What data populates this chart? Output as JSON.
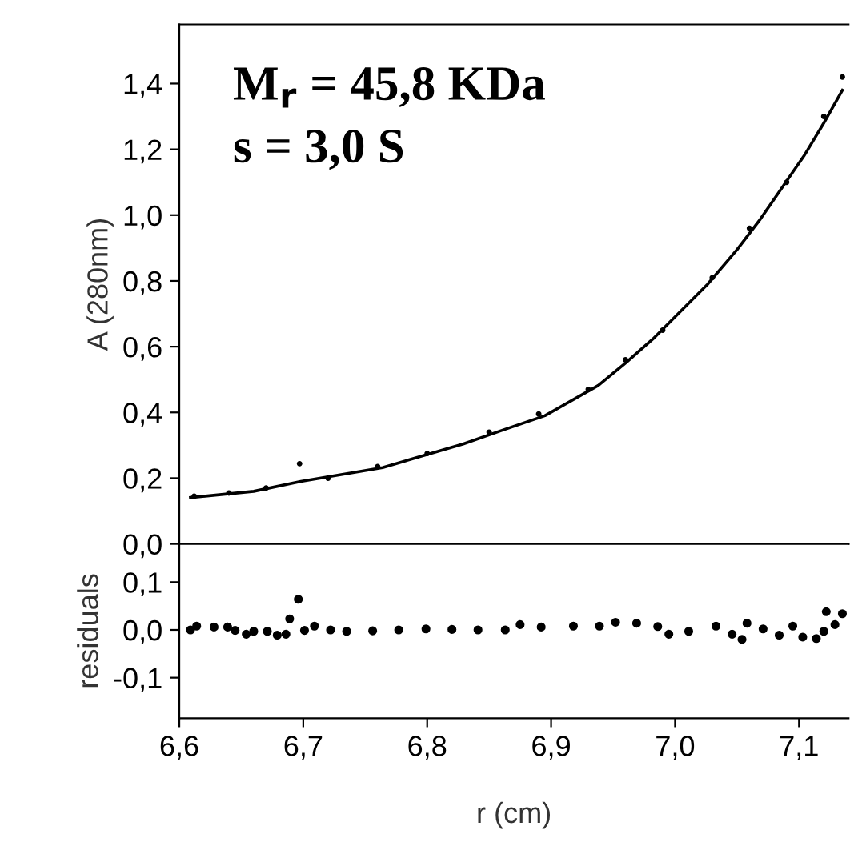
{
  "chart_data": [
    {
      "type": "line",
      "ylabel": "A (280nm)",
      "annotations": [
        "M$_{r}$ = 45,8 KDa",
        "s = 3,0 S"
      ],
      "tick_labels": "y",
      "xlim": [
        6.6,
        7.14
      ],
      "ylim": [
        0,
        1.58
      ],
      "yticks": [
        {
          "value": 0,
          "label": "0,0"
        },
        {
          "value": 0.2,
          "label": "0,2"
        },
        {
          "value": 0.4,
          "label": "0,4"
        },
        {
          "value": 0.6,
          "label": "0,6"
        },
        {
          "value": 0.8,
          "label": "0,8"
        },
        {
          "value": 1.0,
          "label": "1,0"
        },
        {
          "value": 1.2,
          "label": "1,2"
        },
        {
          "value": 1.4,
          "label": "1,4"
        }
      ],
      "series": [
        {
          "type": "line",
          "color": "#000000",
          "marker": "none",
          "line_style": "solid",
          "x": [
            6.609,
            6.66,
            6.698,
            6.764,
            6.829,
            6.86,
            6.895,
            6.938,
            6.96,
            6.982,
            7.026,
            7.05,
            7.069,
            7.104,
            7.12,
            7.135
          ],
          "values": [
            0.141,
            0.16,
            0.19,
            0.232,
            0.304,
            0.345,
            0.39,
            0.482,
            0.55,
            0.623,
            0.789,
            0.895,
            0.989,
            1.18,
            1.28,
            1.38
          ]
        },
        {
          "type": "scatter",
          "color": "#000000",
          "marker": "circle",
          "x": [
            6.612,
            6.64,
            6.67,
            6.697,
            6.72,
            6.76,
            6.8,
            6.85,
            6.89,
            6.93,
            6.96,
            6.99,
            7.03,
            7.06,
            7.09,
            7.12,
            7.135
          ],
          "values": [
            0.145,
            0.155,
            0.17,
            0.244,
            0.2,
            0.235,
            0.275,
            0.34,
            0.395,
            0.47,
            0.56,
            0.65,
            0.81,
            0.96,
            1.1,
            1.3,
            1.42
          ]
        }
      ]
    },
    {
      "type": "scatter",
      "xlabel": "r (cm)",
      "ylabel": "residuals",
      "xlim": [
        6.6,
        7.14
      ],
      "ylim": [
        -0.185,
        0.18
      ],
      "marker": "circle",
      "xticks": [
        {
          "value": 6.6,
          "label": "6,6"
        },
        {
          "value": 6.7,
          "label": "6,7"
        },
        {
          "value": 6.8,
          "label": "6,8"
        },
        {
          "value": 6.9,
          "label": "6,9"
        },
        {
          "value": 7.0,
          "label": "7,0"
        },
        {
          "value": 7.1,
          "label": "7,1"
        }
      ],
      "yticks": [
        {
          "value": -0.1,
          "label": "-0,1"
        },
        {
          "value": 0,
          "label": "0,0"
        },
        {
          "value": 0.1,
          "label": "0,1"
        }
      ],
      "series": [
        {
          "color": "#000000",
          "x": [
            6.609,
            6.614,
            6.628,
            6.639,
            6.645,
            6.654,
            6.66,
            6.671,
            6.679,
            6.686,
            6.689,
            6.696,
            6.701,
            6.709,
            6.722,
            6.735,
            6.756,
            6.777,
            6.799,
            6.82,
            6.841,
            6.863,
            6.875,
            6.892,
            6.918,
            6.939,
            6.952,
            6.969,
            6.986,
            6.995,
            7.011,
            7.033,
            7.046,
            7.054,
            7.058,
            7.071,
            7.084,
            7.095,
            7.103,
            7.114,
            7.12,
            7.122,
            7.129,
            7.135
          ],
          "values": [
            0.0,
            0.008,
            0.006,
            0.006,
            -0.001,
            -0.009,
            -0.003,
            -0.003,
            -0.011,
            -0.009,
            0.023,
            0.064,
            -0.001,
            0.008,
            0.0,
            -0.003,
            -0.002,
            0.0,
            0.002,
            0.001,
            0.0,
            0.0,
            0.011,
            0.006,
            0.008,
            0.008,
            0.016,
            0.014,
            0.007,
            -0.009,
            -0.003,
            0.008,
            -0.009,
            -0.02,
            0.014,
            0.002,
            -0.011,
            0.008,
            -0.015,
            -0.018,
            -0.003,
            0.038,
            0.011,
            0.034
          ]
        }
      ]
    }
  ]
}
